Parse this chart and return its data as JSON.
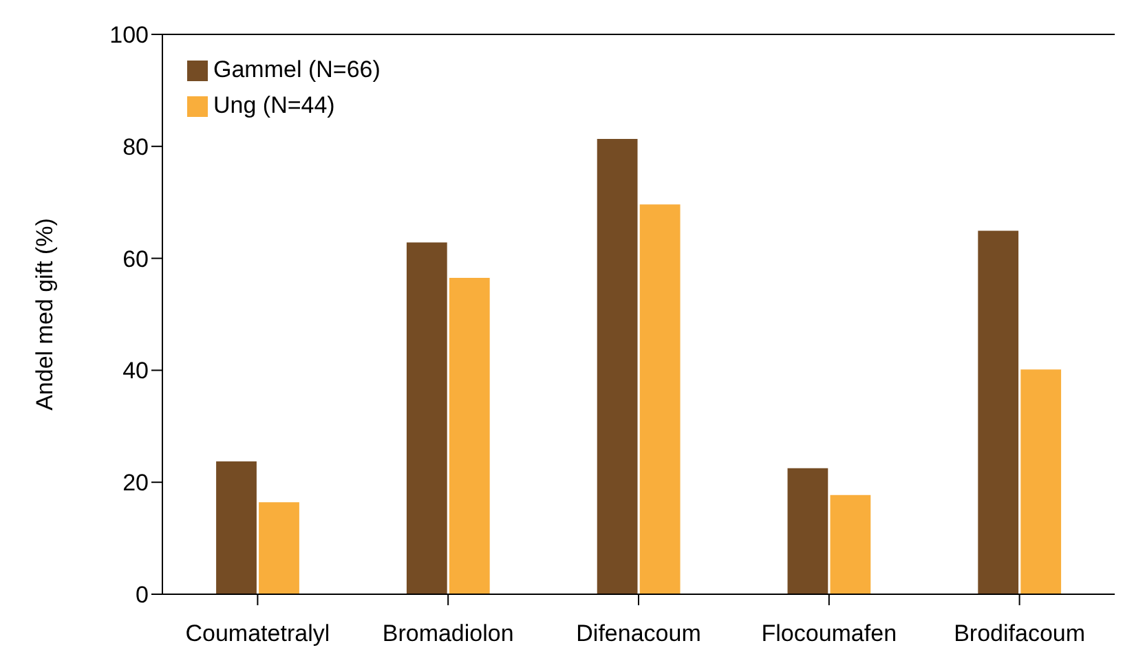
{
  "chart_data": {
    "type": "bar",
    "ylabel": "Andel med gift (%)",
    "categories": [
      "Coumatetralyl",
      "Bromadiolon",
      "Difenacoum",
      "Flocoumafen",
      "Brodifacoum"
    ],
    "series": [
      {
        "name": "Gammel (N=66)",
        "color": "#754c24",
        "values": [
          23.8,
          62.9,
          81.4,
          22.6,
          65.0
        ]
      },
      {
        "name": "Ung (N=44)",
        "color": "#f9ae3c",
        "values": [
          16.5,
          56.6,
          69.7,
          17.8,
          40.2
        ]
      }
    ],
    "ylim": [
      0,
      100
    ],
    "yticks": [
      0,
      20,
      40,
      60,
      80,
      100
    ],
    "grid": false,
    "legend": "top left"
  }
}
